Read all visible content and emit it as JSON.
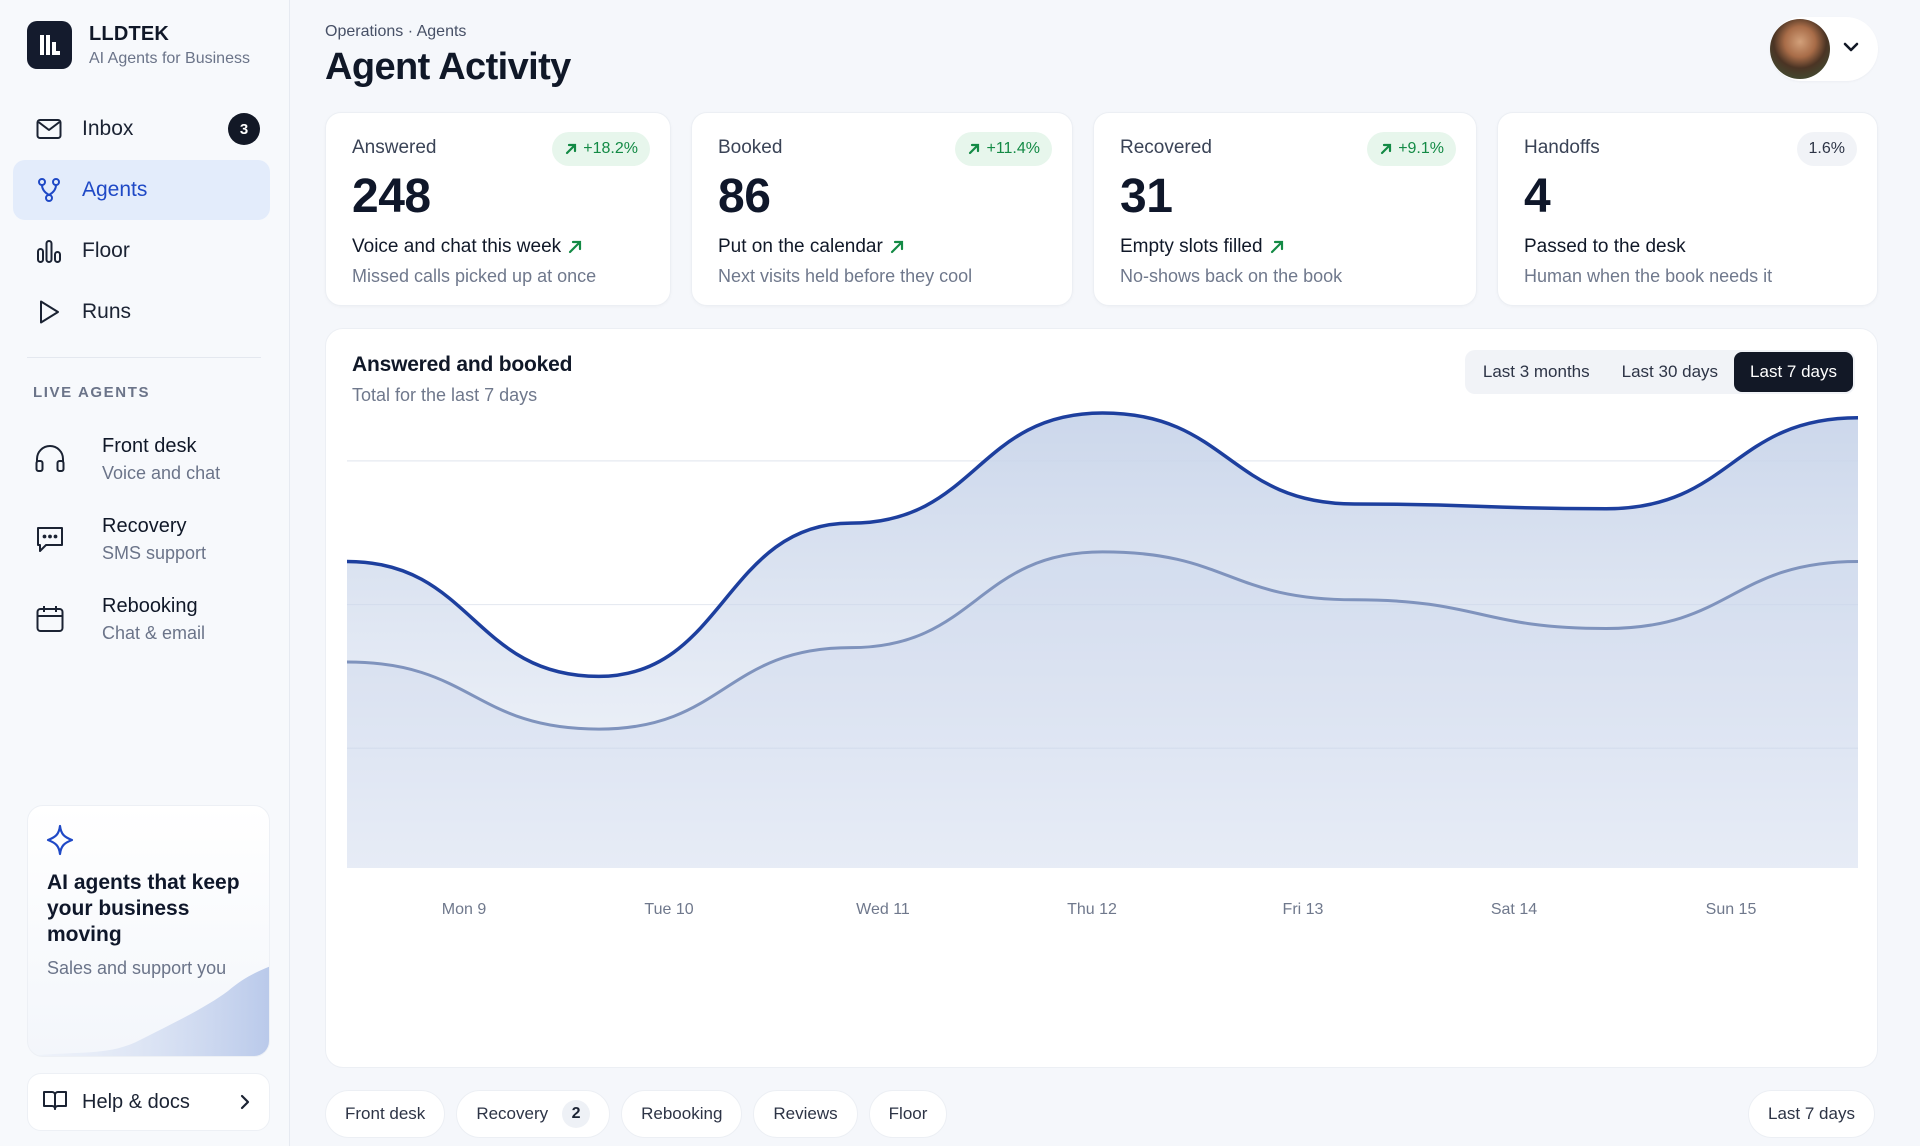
{
  "brand": {
    "name": "LLDTEK",
    "tagline": "AI Agents for Business"
  },
  "nav": [
    {
      "label": "Inbox",
      "icon": "mail-icon",
      "badge": "3",
      "active": false
    },
    {
      "label": "Agents",
      "icon": "agents-icon",
      "active": true
    },
    {
      "label": "Floor",
      "icon": "floor-icon",
      "active": false
    },
    {
      "label": "Runs",
      "icon": "play-icon",
      "active": false
    }
  ],
  "live_agents": {
    "heading": "LIVE AGENTS",
    "items": [
      {
        "title": "Front desk",
        "subtitle": "Voice and chat",
        "icon": "headset-icon"
      },
      {
        "title": "Recovery",
        "subtitle": "SMS support",
        "icon": "message-icon"
      },
      {
        "title": "Rebooking",
        "subtitle": "Chat & email",
        "icon": "calendar-icon"
      }
    ]
  },
  "promo": {
    "title": "AI agents that keep your business moving",
    "subtitle": "Sales and support you"
  },
  "help": {
    "label": "Help & docs"
  },
  "header": {
    "breadcrumb": "Operations · Agents",
    "title": "Agent Activity"
  },
  "stats": [
    {
      "label": "Answered",
      "value": "248",
      "badge": "+18.2%",
      "trend": "up",
      "line": "Voice and chat this week",
      "sub": "Missed calls picked up at once"
    },
    {
      "label": "Booked",
      "value": "86",
      "badge": "+11.4%",
      "trend": "up",
      "line": "Put on the calendar",
      "sub": "Next visits held before they cool"
    },
    {
      "label": "Recovered",
      "value": "31",
      "badge": "+9.1%",
      "trend": "up",
      "line": "Empty slots filled",
      "sub": "No-shows back on the book"
    },
    {
      "label": "Handoffs",
      "value": "4",
      "badge": "1.6%",
      "trend": "neutral",
      "line": "Passed to the desk",
      "sub": "Human when the book needs it"
    }
  ],
  "panel": {
    "title": "Answered and booked",
    "subtitle": "Total for the last 7 days",
    "ranges": [
      "Last 3 months",
      "Last 30 days",
      "Last 7 days"
    ],
    "active_range": "Last 7 days"
  },
  "chart_data": {
    "type": "area",
    "categories": [
      "Mon 9",
      "Tue 10",
      "Wed 11",
      "Thu 12",
      "Fri 13",
      "Sat 14",
      "Sun 15"
    ],
    "series": [
      {
        "values": [
          64,
          40,
          72,
          95,
          76,
          75,
          94
        ]
      },
      {
        "values": [
          43,
          29,
          46,
          66,
          56,
          50,
          64
        ]
      }
    ],
    "ylim": [
      0,
      100
    ],
    "grid": true,
    "colors": {
      "line_primary": "#1d3f9e",
      "line_secondary": "#7f93bd",
      "fill": "#c9d5ea"
    }
  },
  "chips": [
    {
      "label": "Front desk"
    },
    {
      "label": "Recovery",
      "count": "2"
    },
    {
      "label": "Rebooking"
    },
    {
      "label": "Reviews"
    },
    {
      "label": "Floor"
    }
  ],
  "chip_right": "Last 7 days",
  "colors": {
    "accent": "#1f49c6",
    "dark": "#121826",
    "positive": "#138a45"
  }
}
